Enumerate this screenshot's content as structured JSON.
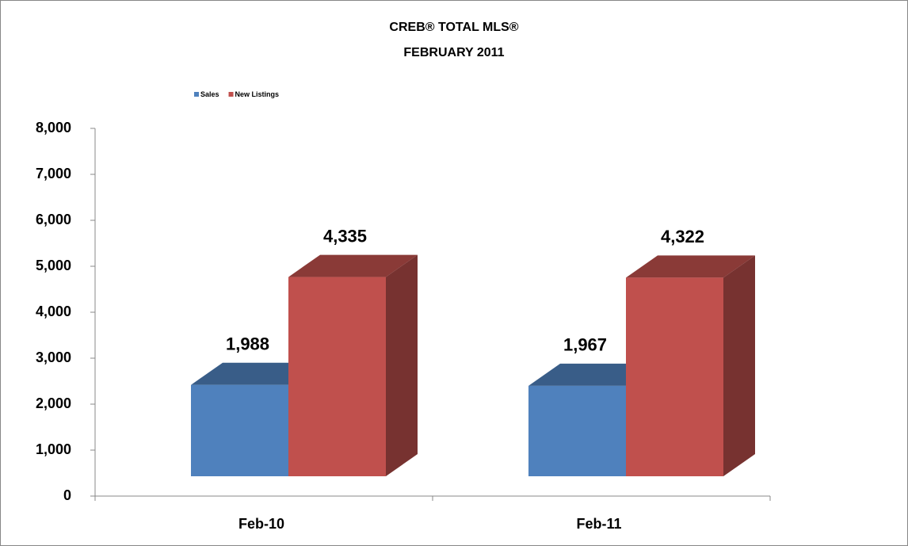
{
  "chart_data": {
    "type": "bar3d",
    "title": "CREB® TOTAL MLS®",
    "subtitle": "FEBRUARY 2011",
    "categories": [
      "Feb-10",
      "Feb-11"
    ],
    "series": [
      {
        "name": "Sales",
        "color": "#4f81bd",
        "values": [
          1988,
          1967
        ],
        "value_labels": [
          "1,988",
          "1,967"
        ]
      },
      {
        "name": "New Listings",
        "color": "#c0504d",
        "values": [
          4335,
          4322
        ],
        "value_labels": [
          "4,335",
          "4,322"
        ]
      }
    ],
    "ylim": [
      0,
      8000
    ],
    "yticks": [
      0,
      {
        "value": 1000,
        "label": "1,000"
      },
      {
        "value": 2000,
        "label": "2,000"
      },
      {
        "value": 3000,
        "label": "3,000"
      },
      {
        "value": 4000,
        "label": "4,000"
      },
      {
        "value": 5000,
        "label": "5,000"
      },
      {
        "value": 6000,
        "label": "6,000"
      },
      {
        "value": 7000,
        "label": "7,000"
      },
      {
        "value": 8000,
        "label": "8,000"
      }
    ],
    "legend": "top-left",
    "grid": false
  }
}
